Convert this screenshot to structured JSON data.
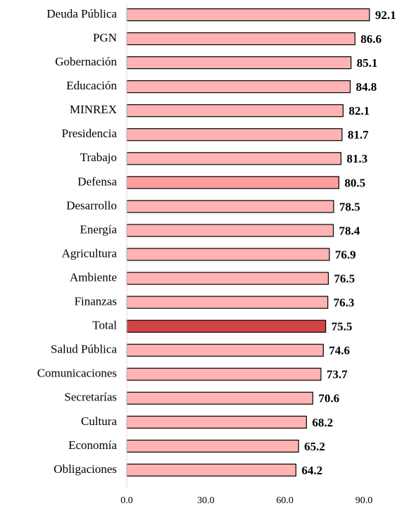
{
  "chart_data": {
    "type": "barh",
    "categories": [
      "Deuda Pública",
      "PGN",
      "Gobernación",
      "Educación",
      "MINREX",
      "Presidencia",
      "Trabajo",
      "Defensa",
      "Desarrollo",
      "Energía",
      "Agricultura",
      "Ambiente",
      "Finanzas",
      "Total",
      "Salud Pública",
      "Comunicaciones",
      "Secretarías",
      "Cultura",
      "Economía",
      "Obligaciones"
    ],
    "values": [
      92.1,
      86.6,
      85.1,
      84.8,
      82.1,
      81.7,
      81.3,
      80.5,
      78.5,
      78.4,
      76.9,
      76.5,
      76.3,
      75.5,
      74.6,
      73.7,
      70.6,
      68.2,
      65.2,
      64.2
    ],
    "colors": [
      "#ffb3b3",
      "#ffb3b3",
      "#ffb3b3",
      "#ffb3b3",
      "#ffb3b3",
      "#ffb3b3",
      "#ffb3b3",
      "#ff9e9e",
      "#ffb3b3",
      "#ffb3b3",
      "#ffb3b3",
      "#ffb3b3",
      "#ffb3b3",
      "#d24545",
      "#ffb3b3",
      "#ffb3b3",
      "#ffb3b3",
      "#ffb3b3",
      "#ffb3b3",
      "#ffb3b3"
    ],
    "xlim": [
      0,
      100
    ],
    "xticks": [
      {
        "value": 0,
        "label": "0.0"
      },
      {
        "value": 30,
        "label": "30.0"
      },
      {
        "value": 60,
        "label": "60.0"
      },
      {
        "value": 90,
        "label": "90.0"
      }
    ]
  }
}
